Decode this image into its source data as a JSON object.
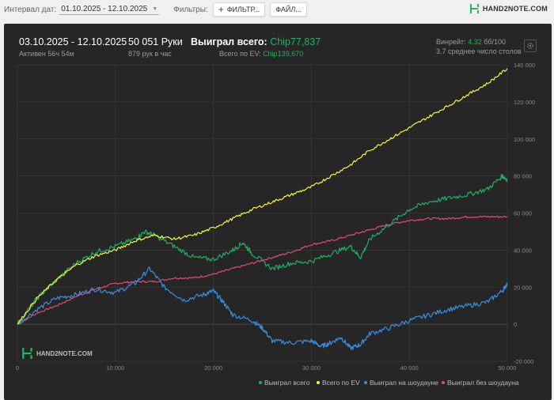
{
  "toolbar": {
    "date_interval_label": "Интервал дат:",
    "date_range_value": "01.10.2025 - 12.10.2025",
    "filters_label": "Фильтры:",
    "filter_button": "ФИЛЬТР...",
    "file_button": "ФАЙЛ...",
    "brand": "HAND2NOTE.COM"
  },
  "summary": {
    "period": "03.10.2025 - 12.10.2025",
    "active": "Активен 56ч 54м",
    "hands": "50 051 Руки",
    "hands_per_hour": "879 рук в час",
    "won_label": "Выиграл всего:",
    "won_value": "Chip77,837",
    "ev_label": "Всего по EV:",
    "ev_value": "Chip139,670",
    "winrate_label": "Винрейт:",
    "winrate_value": "4.32",
    "winrate_unit": "бб/100",
    "tables": "3.7 среднее число столов"
  },
  "watermark": "HAND2NOTE.COM",
  "colors": {
    "won": "#21b060",
    "ev": "#f7f53c",
    "showdown": "#3a8ee0",
    "non_showdown": "#e04a78",
    "panel": "#262626"
  },
  "chart_data": {
    "type": "line",
    "xlim": [
      0,
      50000
    ],
    "ylim": [
      -20000,
      140000
    ],
    "x_ticks": [
      "0",
      "10 000",
      "20 000",
      "30 000",
      "40 000",
      "50 000"
    ],
    "y_ticks": [
      "-20 000",
      "0",
      "20 000",
      "40 000",
      "60 000",
      "80 000",
      "100 000",
      "120 000",
      "140 000"
    ],
    "grid": true,
    "legend_position": "bottom-right",
    "series": [
      {
        "name": "Выиграл всего",
        "color": "#21b060",
        "x": [
          0,
          2000,
          4000,
          6000,
          8000,
          10000,
          12000,
          13000,
          14000,
          16000,
          18000,
          20000,
          22000,
          23000,
          24000,
          26000,
          28000,
          30000,
          32000,
          34000,
          35000,
          36000,
          38000,
          40000,
          42000,
          44000,
          46000,
          48000,
          49500,
          50000
        ],
        "y": [
          0,
          14000,
          24000,
          33000,
          39000,
          42000,
          46000,
          50000,
          48000,
          42000,
          36000,
          35000,
          40000,
          44000,
          38000,
          30000,
          33000,
          34000,
          38000,
          42000,
          36000,
          46000,
          54000,
          62000,
          66000,
          68000,
          70000,
          73000,
          80000,
          78000
        ]
      },
      {
        "name": "Всего по EV",
        "color": "#f7f53c",
        "x": [
          0,
          2000,
          4000,
          6000,
          8000,
          10000,
          12000,
          14000,
          16000,
          18000,
          20000,
          22000,
          24000,
          26000,
          28000,
          30000,
          32000,
          34000,
          36000,
          38000,
          40000,
          42000,
          44000,
          46000,
          48000,
          50000
        ],
        "y": [
          0,
          14000,
          24000,
          32000,
          37000,
          40000,
          45000,
          48000,
          46000,
          48000,
          52000,
          57000,
          62000,
          66000,
          70000,
          74000,
          80000,
          86000,
          94000,
          100000,
          106000,
          112000,
          118000,
          124000,
          130000,
          138000
        ]
      },
      {
        "name": "Выиграл на шоудауне",
        "color": "#3a8ee0",
        "x": [
          0,
          2000,
          4000,
          6000,
          8000,
          10000,
          12000,
          13500,
          15000,
          17000,
          19000,
          20000,
          21000,
          22000,
          24000,
          25000,
          26000,
          28000,
          30000,
          31000,
          32000,
          33000,
          34000,
          35000,
          36000,
          38000,
          40000,
          42000,
          44000,
          46000,
          48000,
          49500,
          50000
        ],
        "y": [
          0,
          8000,
          14000,
          16000,
          19000,
          17000,
          22000,
          30000,
          20000,
          13000,
          16000,
          18000,
          12000,
          5000,
          2000,
          -2000,
          -9000,
          -10000,
          -9000,
          -12000,
          -10000,
          -7000,
          -13000,
          -11000,
          -5000,
          -2000,
          2000,
          5000,
          8000,
          10000,
          12000,
          18000,
          22000
        ]
      },
      {
        "name": "Выиграл без шоудауна",
        "color": "#e04a78",
        "x": [
          0,
          2000,
          4000,
          6000,
          8000,
          10000,
          12000,
          14000,
          16000,
          18000,
          20000,
          22000,
          24000,
          26000,
          28000,
          30000,
          32000,
          34000,
          36000,
          38000,
          40000,
          42000,
          44000,
          46000,
          48000,
          50000
        ],
        "y": [
          0,
          6000,
          10000,
          15000,
          19000,
          22000,
          23000,
          23000,
          25000,
          25000,
          27000,
          30000,
          33000,
          36000,
          39000,
          43000,
          45000,
          48000,
          51000,
          54000,
          56000,
          57000,
          57000,
          58000,
          58000,
          58000
        ]
      }
    ]
  }
}
